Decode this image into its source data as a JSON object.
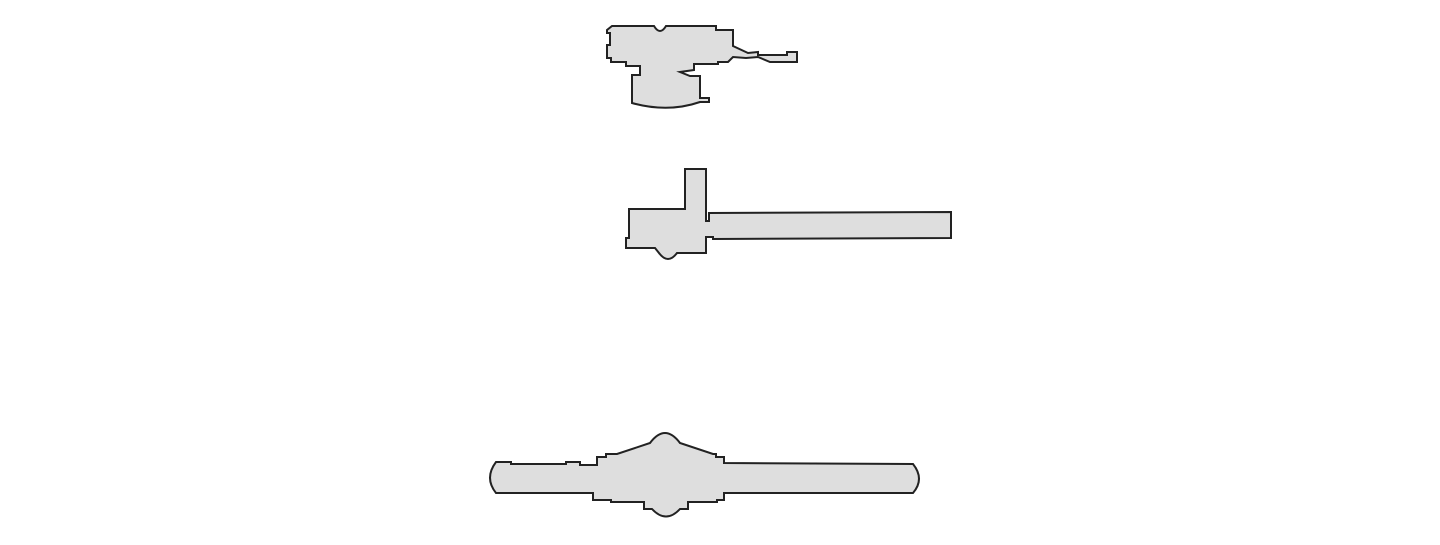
{
  "diagram": {
    "plans": [
      {
        "id": "building-plan-top",
        "fill": "#dedede",
        "stroke": "#222222"
      },
      {
        "id": "building-plan-middle",
        "fill": "#dedede",
        "stroke": "#222222"
      },
      {
        "id": "building-plan-bottom",
        "fill": "#dedede",
        "stroke": "#222222"
      }
    ],
    "background": "#ffffff"
  }
}
